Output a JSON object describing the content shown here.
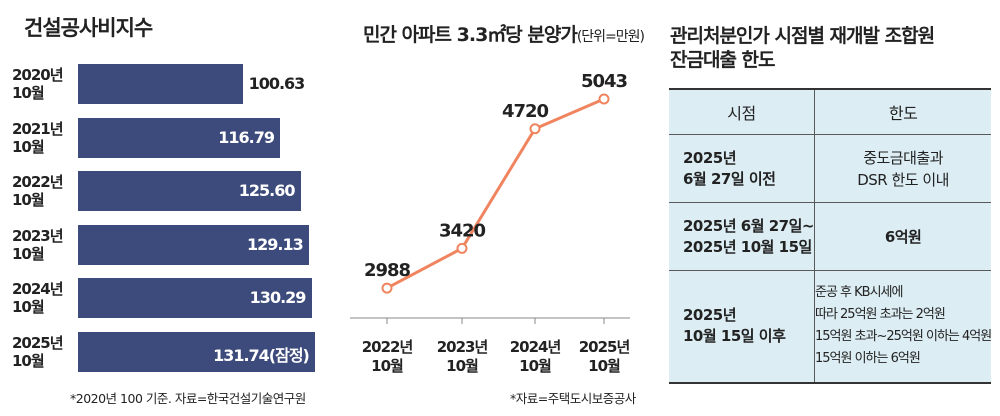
{
  "left_chart": {
    "title": "건설공사비지수",
    "note": "*2020년 100 기준. 자료=한국건설기술연구원"
  },
  "middle_chart": {
    "title": "민간 아파트 3.3㎡당 분양가",
    "unit": "(단위=만원)",
    "source": "*자료=주택도시보증공사"
  },
  "right_table": {
    "title": "관리처분인가 시점별 재개발 조합원\n잔금대출 한도",
    "headers": {
      "time": "시점",
      "limit": "한도"
    },
    "rows": [
      {
        "time": "2025년\n6월 27일 이전",
        "limit": "중도금대출과\nDSR 한도 이내"
      },
      {
        "time": "2025년 6월 27일~\n2025년 10월 15일",
        "limit": "6억원"
      },
      {
        "time": "2025년\n10월 15일 이후",
        "limit": "준공 후 KB시세에\n따라 25억원 초과는 2억원\n15억원 초과~25억원 이하는 4억원\n15억원 이하는 6억원"
      }
    ]
  },
  "chart_data": [
    {
      "type": "bar",
      "orientation": "horizontal",
      "title": "건설공사비지수",
      "categories": [
        "2020년\n10월",
        "2021년\n10월",
        "2022년\n10월",
        "2023년\n10월",
        "2024년\n10월",
        "2025년\n10월"
      ],
      "values": [
        100.63,
        116.79,
        125.6,
        129.13,
        130.29,
        131.74
      ],
      "value_labels": [
        "100.63",
        "116.79",
        "125.60",
        "129.13",
        "130.29",
        "131.74(잠정)"
      ],
      "axis_min": 30,
      "axis_max": 133,
      "color": "#3c4b7c"
    },
    {
      "type": "line",
      "title": "민간 아파트 3.3㎡당 분양가",
      "unit": "만원",
      "categories": [
        "2022년\n10월",
        "2023년\n10월",
        "2024년\n10월",
        "2025년\n10월"
      ],
      "values": [
        2988,
        3420,
        4720,
        5043
      ],
      "ylim": [
        2750,
        5250
      ],
      "color": "#f0845f"
    }
  ]
}
